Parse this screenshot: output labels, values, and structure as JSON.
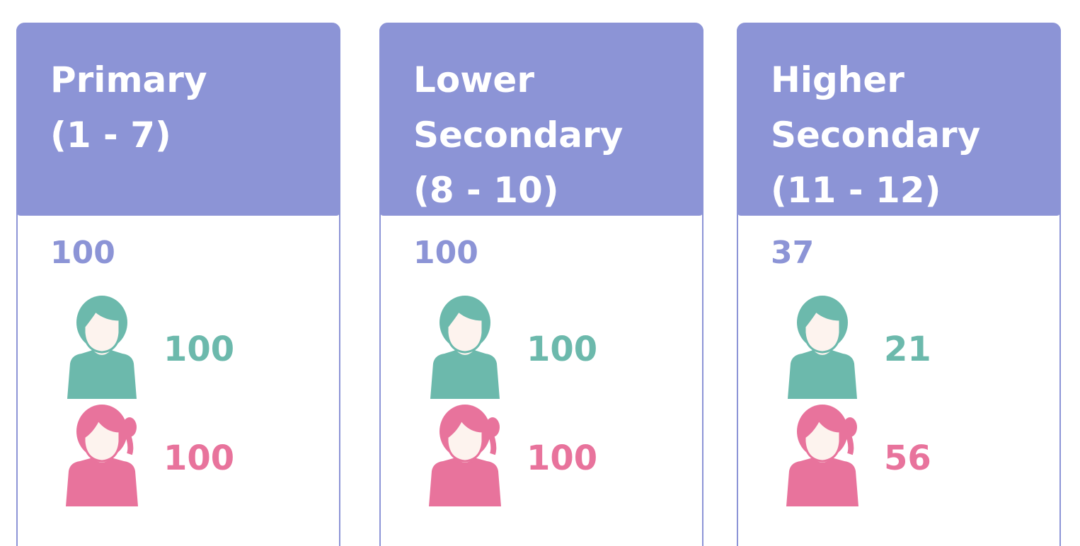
{
  "cards": [
    {
      "title": [
        "Primary",
        "(1 - 7)"
      ],
      "total": "100",
      "male": "100",
      "female": "100"
    },
    {
      "title": [
        "Lower",
        "Secondary",
        "(8 - 10)"
      ],
      "total": "100",
      "male": "100",
      "female": "100"
    },
    {
      "title": [
        "Higher",
        "Secondary",
        "(11 - 12)"
      ],
      "total": "37",
      "male": "21",
      "female": "56"
    }
  ]
}
